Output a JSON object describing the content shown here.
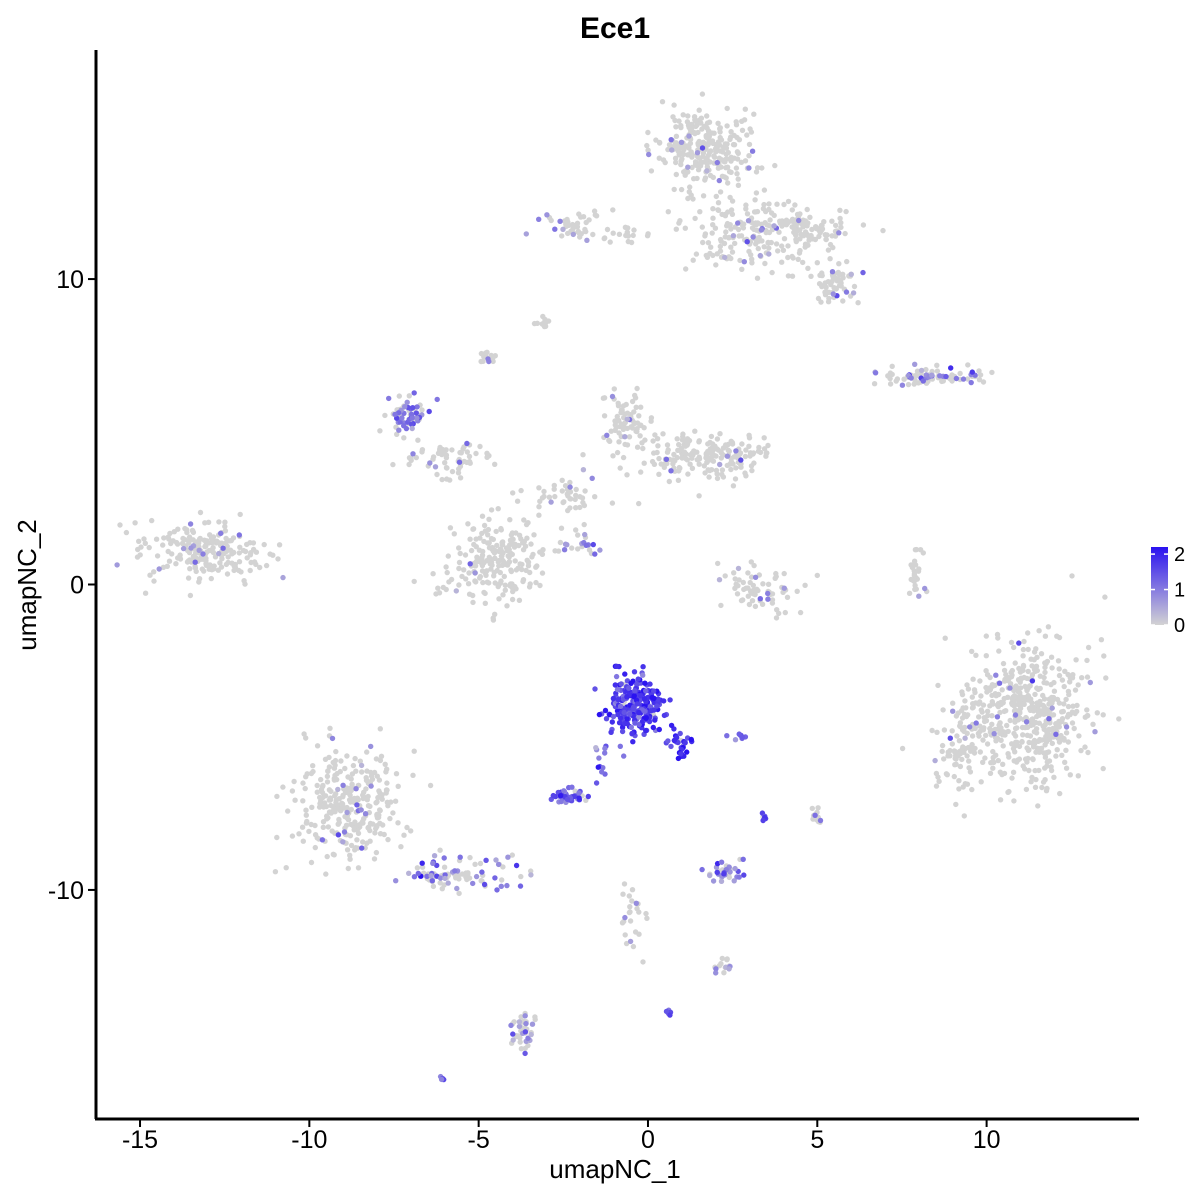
{
  "chart_data": {
    "type": "scatter",
    "title": "Ece1",
    "xlabel": "umapNC_1",
    "ylabel": "umapNC_2",
    "xlim": [
      -16.3,
      14.5
    ],
    "ylim": [
      -17.5,
      17.5
    ],
    "x_ticks": [
      -15,
      -10,
      -5,
      0,
      5,
      10
    ],
    "x_tick_labels": [
      "-15",
      "-10",
      "-5",
      "0",
      "5",
      "10"
    ],
    "y_ticks": [
      -10,
      0,
      10
    ],
    "y_tick_labels": [
      "-10",
      "0",
      "10"
    ],
    "grid": false,
    "legend_position": "right",
    "colorbar": {
      "min": 0,
      "max": 2.2,
      "ticks": [
        0,
        1,
        2
      ],
      "tick_labels": [
        "0",
        "1",
        "2"
      ],
      "low_color": "#d3d3d3",
      "high_color": "#2a12f0"
    },
    "clusters": [
      {
        "cx": 1.7,
        "cy": 14.3,
        "rx": 1.4,
        "ry": 1.3,
        "n": 260,
        "expr_frac": 0.06,
        "expr_mean": 0.7
      },
      {
        "cx": 3.2,
        "cy": 11.5,
        "rx": 2.2,
        "ry": 1.2,
        "n": 200,
        "expr_frac": 0.05,
        "expr_mean": 0.6
      },
      {
        "cx": 5.6,
        "cy": 9.8,
        "rx": 0.6,
        "ry": 0.8,
        "n": 60,
        "expr_frac": 0.12,
        "expr_mean": 0.8
      },
      {
        "cx": 4.8,
        "cy": 11.7,
        "rx": 1.1,
        "ry": 0.5,
        "n": 70,
        "expr_frac": 0.08,
        "expr_mean": 0.7
      },
      {
        "cx": -2.2,
        "cy": 11.8,
        "rx": 0.9,
        "ry": 0.5,
        "n": 45,
        "expr_frac": 0.12,
        "expr_mean": 0.9
      },
      {
        "cx": -0.6,
        "cy": 11.4,
        "rx": 0.6,
        "ry": 0.25,
        "n": 15,
        "expr_frac": 0.0,
        "expr_mean": 0
      },
      {
        "cx": -3.0,
        "cy": 8.6,
        "rx": 0.25,
        "ry": 0.2,
        "n": 12,
        "expr_frac": 0.0,
        "expr_mean": 0
      },
      {
        "cx": -4.7,
        "cy": 7.4,
        "rx": 0.3,
        "ry": 0.25,
        "n": 14,
        "expr_frac": 0.1,
        "expr_mean": 0.8
      },
      {
        "cx": 8.3,
        "cy": 6.8,
        "rx": 1.7,
        "ry": 0.28,
        "n": 90,
        "expr_frac": 0.3,
        "expr_mean": 1.0
      },
      {
        "cx": -7.1,
        "cy": 5.5,
        "rx": 0.6,
        "ry": 0.6,
        "n": 70,
        "expr_frac": 0.55,
        "expr_mean": 1.2
      },
      {
        "cx": -5.8,
        "cy": 4.1,
        "rx": 1.4,
        "ry": 0.6,
        "n": 60,
        "expr_frac": 0.12,
        "expr_mean": 0.9
      },
      {
        "cx": -0.6,
        "cy": 5.4,
        "rx": 0.7,
        "ry": 0.9,
        "n": 70,
        "expr_frac": 0.1,
        "expr_mean": 0.8
      },
      {
        "cx": 1.6,
        "cy": 4.2,
        "rx": 2.3,
        "ry": 0.75,
        "n": 190,
        "expr_frac": 0.04,
        "expr_mean": 0.7
      },
      {
        "cx": -2.5,
        "cy": 2.8,
        "rx": 1.4,
        "ry": 0.7,
        "n": 45,
        "expr_frac": 0.08,
        "expr_mean": 0.8
      },
      {
        "cx": -4.5,
        "cy": 0.8,
        "rx": 1.5,
        "ry": 1.4,
        "n": 220,
        "expr_frac": 0.03,
        "expr_mean": 0.7
      },
      {
        "cx": -13.1,
        "cy": 1.1,
        "rx": 1.7,
        "ry": 0.9,
        "n": 220,
        "expr_frac": 0.06,
        "expr_mean": 0.8
      },
      {
        "cx": -1.8,
        "cy": 1.3,
        "rx": 0.8,
        "ry": 0.35,
        "n": 20,
        "expr_frac": 0.4,
        "expr_mean": 0.9
      },
      {
        "cx": 3.3,
        "cy": -0.2,
        "rx": 1.2,
        "ry": 0.8,
        "n": 70,
        "expr_frac": 0.05,
        "expr_mean": 0.8
      },
      {
        "cx": 8.0,
        "cy": 0.3,
        "rx": 0.25,
        "ry": 0.9,
        "n": 25,
        "expr_frac": 0.1,
        "expr_mean": 0.8
      },
      {
        "cx": 11.2,
        "cy": -4.2,
        "rx": 1.9,
        "ry": 2.4,
        "n": 520,
        "expr_frac": 0.03,
        "expr_mean": 0.8
      },
      {
        "cx": 9.2,
        "cy": -5.4,
        "rx": 0.7,
        "ry": 1.3,
        "n": 80,
        "expr_frac": 0.06,
        "expr_mean": 0.8
      },
      {
        "cx": -0.4,
        "cy": -3.9,
        "rx": 0.8,
        "ry": 1.0,
        "n": 240,
        "expr_frac": 0.97,
        "expr_mean": 1.8
      },
      {
        "cx": 0.9,
        "cy": -5.2,
        "rx": 0.3,
        "ry": 0.5,
        "n": 30,
        "expr_frac": 0.95,
        "expr_mean": 1.8
      },
      {
        "cx": -2.4,
        "cy": -6.9,
        "rx": 0.5,
        "ry": 0.3,
        "n": 45,
        "expr_frac": 0.9,
        "expr_mean": 1.4
      },
      {
        "cx": -1.4,
        "cy": -5.8,
        "rx": 0.3,
        "ry": 0.6,
        "n": 12,
        "expr_frac": 0.8,
        "expr_mean": 1.2
      },
      {
        "cx": 2.7,
        "cy": -5.0,
        "rx": 0.3,
        "ry": 0.15,
        "n": 8,
        "expr_frac": 0.9,
        "expr_mean": 1.3
      },
      {
        "cx": -8.8,
        "cy": -7.2,
        "rx": 1.6,
        "ry": 1.8,
        "n": 300,
        "expr_frac": 0.05,
        "expr_mean": 0.8
      },
      {
        "cx": -5.5,
        "cy": -9.5,
        "rx": 1.6,
        "ry": 0.6,
        "n": 90,
        "expr_frac": 0.45,
        "expr_mean": 1.0
      },
      {
        "cx": 2.3,
        "cy": -9.4,
        "rx": 0.55,
        "ry": 0.35,
        "n": 35,
        "expr_frac": 0.7,
        "expr_mean": 1.0
      },
      {
        "cx": 5.0,
        "cy": -7.6,
        "rx": 0.2,
        "ry": 0.3,
        "n": 12,
        "expr_frac": 0.3,
        "expr_mean": 0.8
      },
      {
        "cx": 3.4,
        "cy": -7.6,
        "rx": 0.1,
        "ry": 0.15,
        "n": 6,
        "expr_frac": 0.8,
        "expr_mean": 1.3
      },
      {
        "cx": -0.4,
        "cy": -10.8,
        "rx": 0.4,
        "ry": 1.3,
        "n": 25,
        "expr_frac": 0.2,
        "expr_mean": 0.8
      },
      {
        "cx": 2.2,
        "cy": -12.5,
        "rx": 0.4,
        "ry": 0.2,
        "n": 14,
        "expr_frac": 0.4,
        "expr_mean": 0.8
      },
      {
        "cx": -3.7,
        "cy": -14.7,
        "rx": 0.35,
        "ry": 0.7,
        "n": 40,
        "expr_frac": 0.4,
        "expr_mean": 0.8
      },
      {
        "cx": 0.6,
        "cy": -14.0,
        "rx": 0.1,
        "ry": 0.1,
        "n": 5,
        "expr_frac": 1.0,
        "expr_mean": 1.5
      },
      {
        "cx": -6.1,
        "cy": -16.2,
        "rx": 0.12,
        "ry": 0.1,
        "n": 5,
        "expr_frac": 1.0,
        "expr_mean": 1.2
      }
    ]
  }
}
